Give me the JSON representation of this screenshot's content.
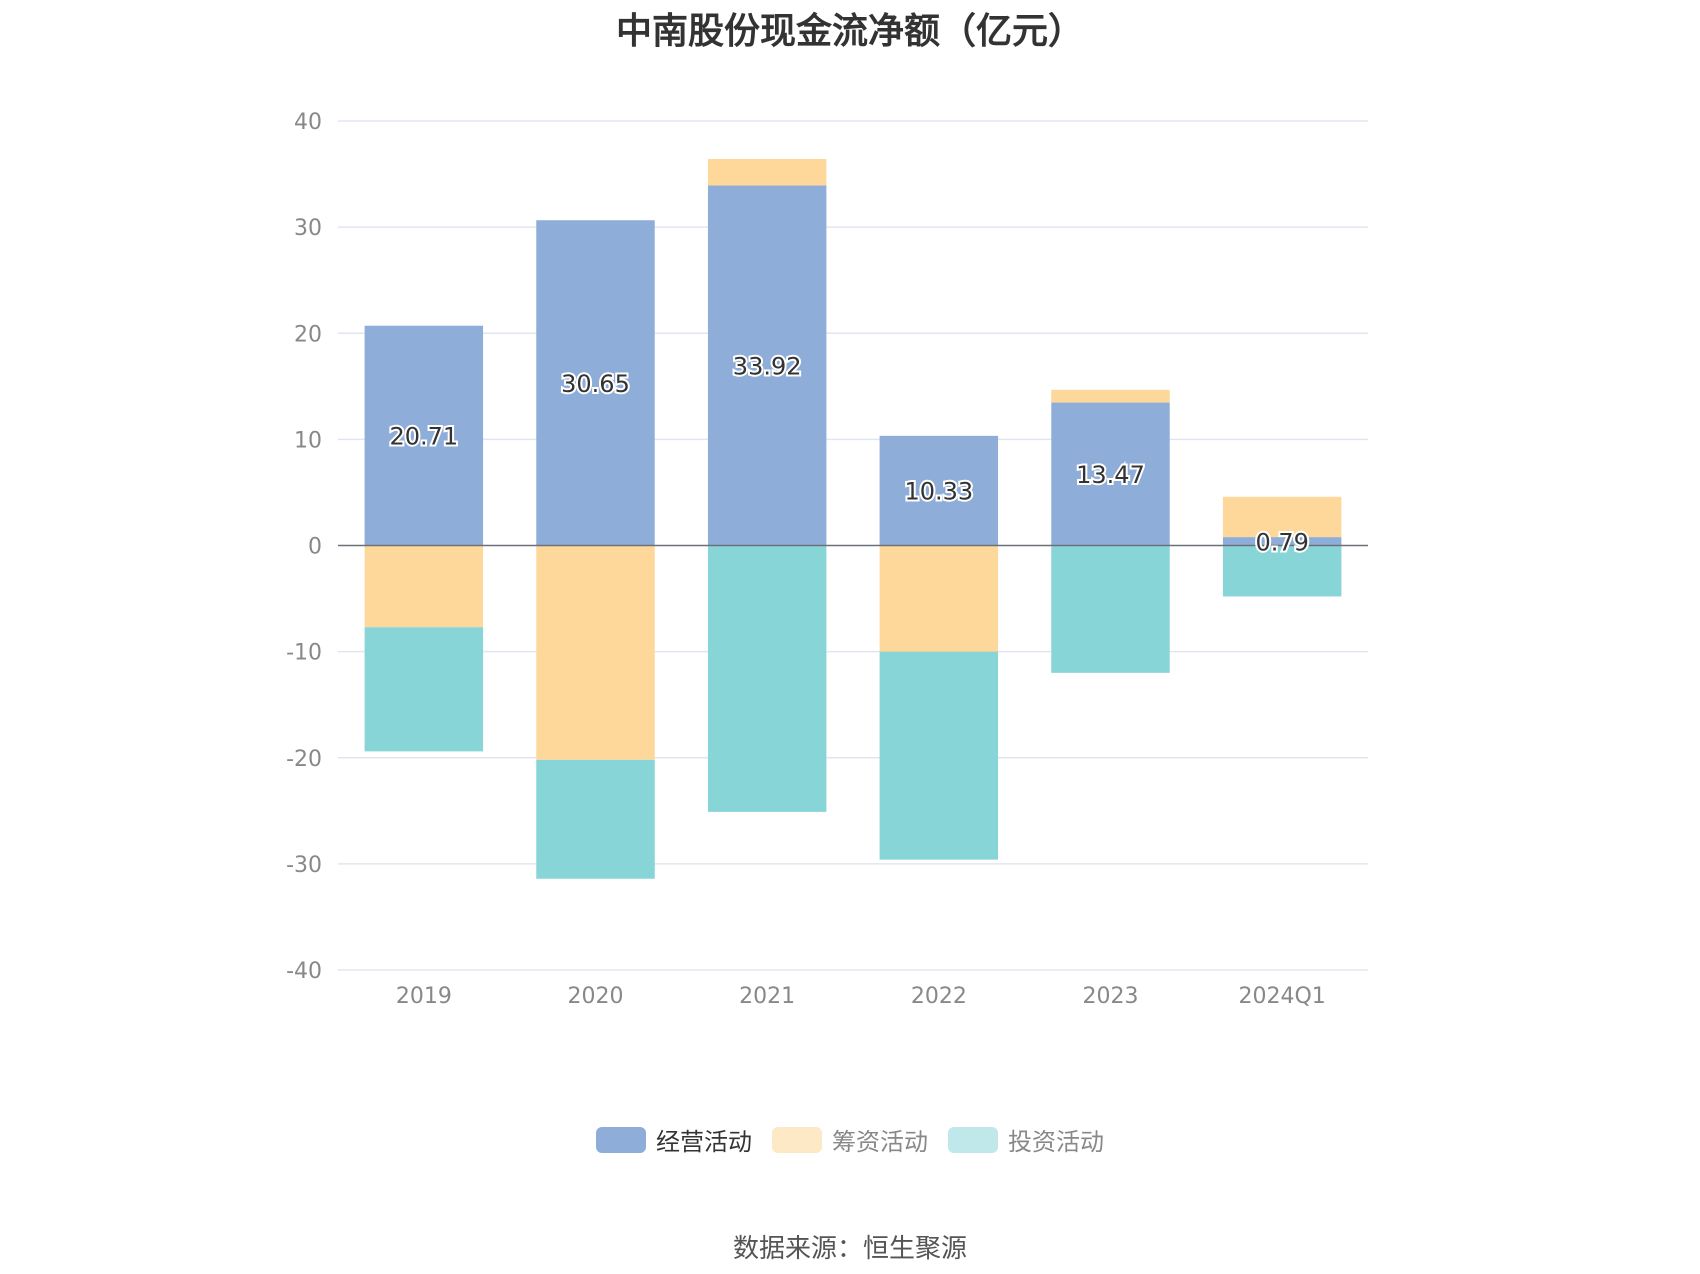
{
  "chart_data": {
    "type": "bar",
    "stacked": true,
    "title": "中南股份现金流净额（亿元）",
    "categories": [
      "2019",
      "2020",
      "2021",
      "2022",
      "2023",
      "2024Q1"
    ],
    "series": [
      {
        "name": "经营活动",
        "color": "#8eadd9",
        "values": [
          20.71,
          30.65,
          33.92,
          10.33,
          13.47,
          0.79
        ]
      },
      {
        "name": "筹资活动",
        "color": "#fdd89a",
        "values": [
          -7.7,
          -20.2,
          2.5,
          -10.0,
          1.2,
          3.8
        ]
      },
      {
        "name": "投资活动",
        "color": "#88d5d8",
        "values": [
          -11.7,
          -11.2,
          -25.1,
          -19.6,
          -12.0,
          -4.8
        ]
      }
    ],
    "ylim": [
      -40,
      40
    ],
    "yticks": [
      40,
      30,
      20,
      10,
      0,
      -10,
      -20,
      -30,
      -40
    ],
    "data_labels": [
      "20.71",
      "30.65",
      "33.92",
      "10.33",
      "13.47",
      "0.79"
    ],
    "grid": true,
    "legend_position": "bottom",
    "legend_inactive_colors": [
      "#8eadd9",
      "#fde9c6",
      "#c0e8ea"
    ],
    "source": "数据来源：恒生聚源"
  }
}
